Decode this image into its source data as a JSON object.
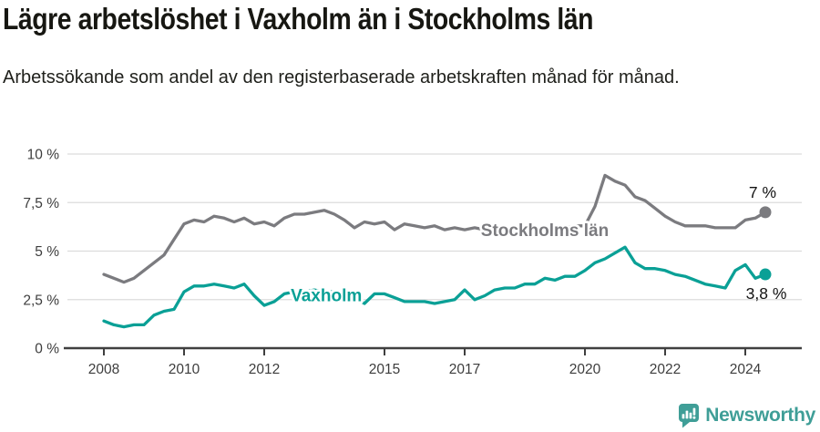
{
  "chart_data": {
    "type": "line",
    "title": "Lägre arbetslöshet i Vaxholm än i Stockholms län",
    "subtitle": "Arbetssökande som andel av den registerbaserade arbetskraften månad för månad.",
    "y_unit": "%",
    "ylim": [
      0,
      10
    ],
    "xlim": [
      2007.1,
      2025.4
    ],
    "grid": true,
    "legend_position": "inline",
    "grid_color": "#dcdcdc",
    "axis_color": "#3f3f3f",
    "x": [
      2008,
      2008.25,
      2008.5,
      2008.75,
      2009,
      2009.25,
      2009.5,
      2009.75,
      2010,
      2010.25,
      2010.5,
      2010.75,
      2011,
      2011.25,
      2011.5,
      2011.75,
      2012,
      2012.25,
      2012.5,
      2012.75,
      2013,
      2013.25,
      2013.5,
      2013.75,
      2014,
      2014.25,
      2014.5,
      2014.75,
      2015,
      2015.25,
      2015.5,
      2015.75,
      2016,
      2016.25,
      2016.5,
      2016.75,
      2017,
      2017.25,
      2017.5,
      2017.75,
      2018,
      2018.25,
      2018.5,
      2018.75,
      2019,
      2019.25,
      2019.5,
      2019.75,
      2020,
      2020.25,
      2020.5,
      2020.75,
      2021,
      2021.25,
      2021.5,
      2021.75,
      2022,
      2022.25,
      2022.5,
      2022.75,
      2023,
      2023.25,
      2023.5,
      2023.75,
      2024,
      2024.25,
      2024.5
    ],
    "series": [
      {
        "id": "stockholms-lan",
        "name": "Stockholms län",
        "color": "#7b7b7f",
        "end_label": "7 %",
        "end_label_offset": [
          -3,
          -16
        ],
        "inline_label": {
          "x": 2019.0,
          "y": 6.05
        },
        "values": [
          3.8,
          3.6,
          3.4,
          3.6,
          4.0,
          4.4,
          4.8,
          5.6,
          6.4,
          6.6,
          6.5,
          6.8,
          6.7,
          6.5,
          6.7,
          6.4,
          6.5,
          6.3,
          6.7,
          6.9,
          6.9,
          7.0,
          7.1,
          6.9,
          6.6,
          6.2,
          6.5,
          6.4,
          6.5,
          6.1,
          6.4,
          6.3,
          6.2,
          6.3,
          6.1,
          6.2,
          6.1,
          6.2,
          6.1,
          6.1,
          6.0,
          6.1,
          6.0,
          6.1,
          6.1,
          6.2,
          6.2,
          6.3,
          6.3,
          7.3,
          8.9,
          8.6,
          8.4,
          7.8,
          7.6,
          7.2,
          6.8,
          6.5,
          6.3,
          6.3,
          6.3,
          6.2,
          6.2,
          6.2,
          6.6,
          6.7,
          7.0
        ]
      },
      {
        "id": "vaxholm",
        "name": "Vaxholm",
        "color": "#0aa096",
        "end_label": "3,8 %",
        "end_label_offset": [
          1,
          27
        ],
        "inline_label": {
          "x": 2013.55,
          "y": 2.7
        },
        "values": [
          1.4,
          1.2,
          1.1,
          1.2,
          1.2,
          1.7,
          1.9,
          2.0,
          2.9,
          3.2,
          3.2,
          3.3,
          3.2,
          3.1,
          3.3,
          2.7,
          2.2,
          2.4,
          2.8,
          2.9,
          2.9,
          3.0,
          2.9,
          2.9,
          2.8,
          2.6,
          2.3,
          2.8,
          2.8,
          2.6,
          2.4,
          2.4,
          2.4,
          2.3,
          2.4,
          2.5,
          3.0,
          2.5,
          2.7,
          3.0,
          3.1,
          3.1,
          3.3,
          3.3,
          3.6,
          3.5,
          3.7,
          3.7,
          4.0,
          4.4,
          4.6,
          4.9,
          5.2,
          4.4,
          4.1,
          4.1,
          4.0,
          3.8,
          3.7,
          3.5,
          3.3,
          3.2,
          3.1,
          4.0,
          4.3,
          3.6,
          3.8
        ]
      }
    ],
    "yticks": [
      {
        "value": 0,
        "label": "0 %"
      },
      {
        "value": 2.5,
        "label": "2,5 %"
      },
      {
        "value": 5,
        "label": "5 %"
      },
      {
        "value": 7.5,
        "label": "7,5 %"
      },
      {
        "value": 10,
        "label": "10 %"
      }
    ],
    "xticks": [
      "2008",
      "2010",
      "2012",
      "2015",
      "2017",
      "2020",
      "2022",
      "2024"
    ]
  },
  "footer": {
    "brand": "Newsworthy",
    "brand_color": "#3f9e97"
  }
}
